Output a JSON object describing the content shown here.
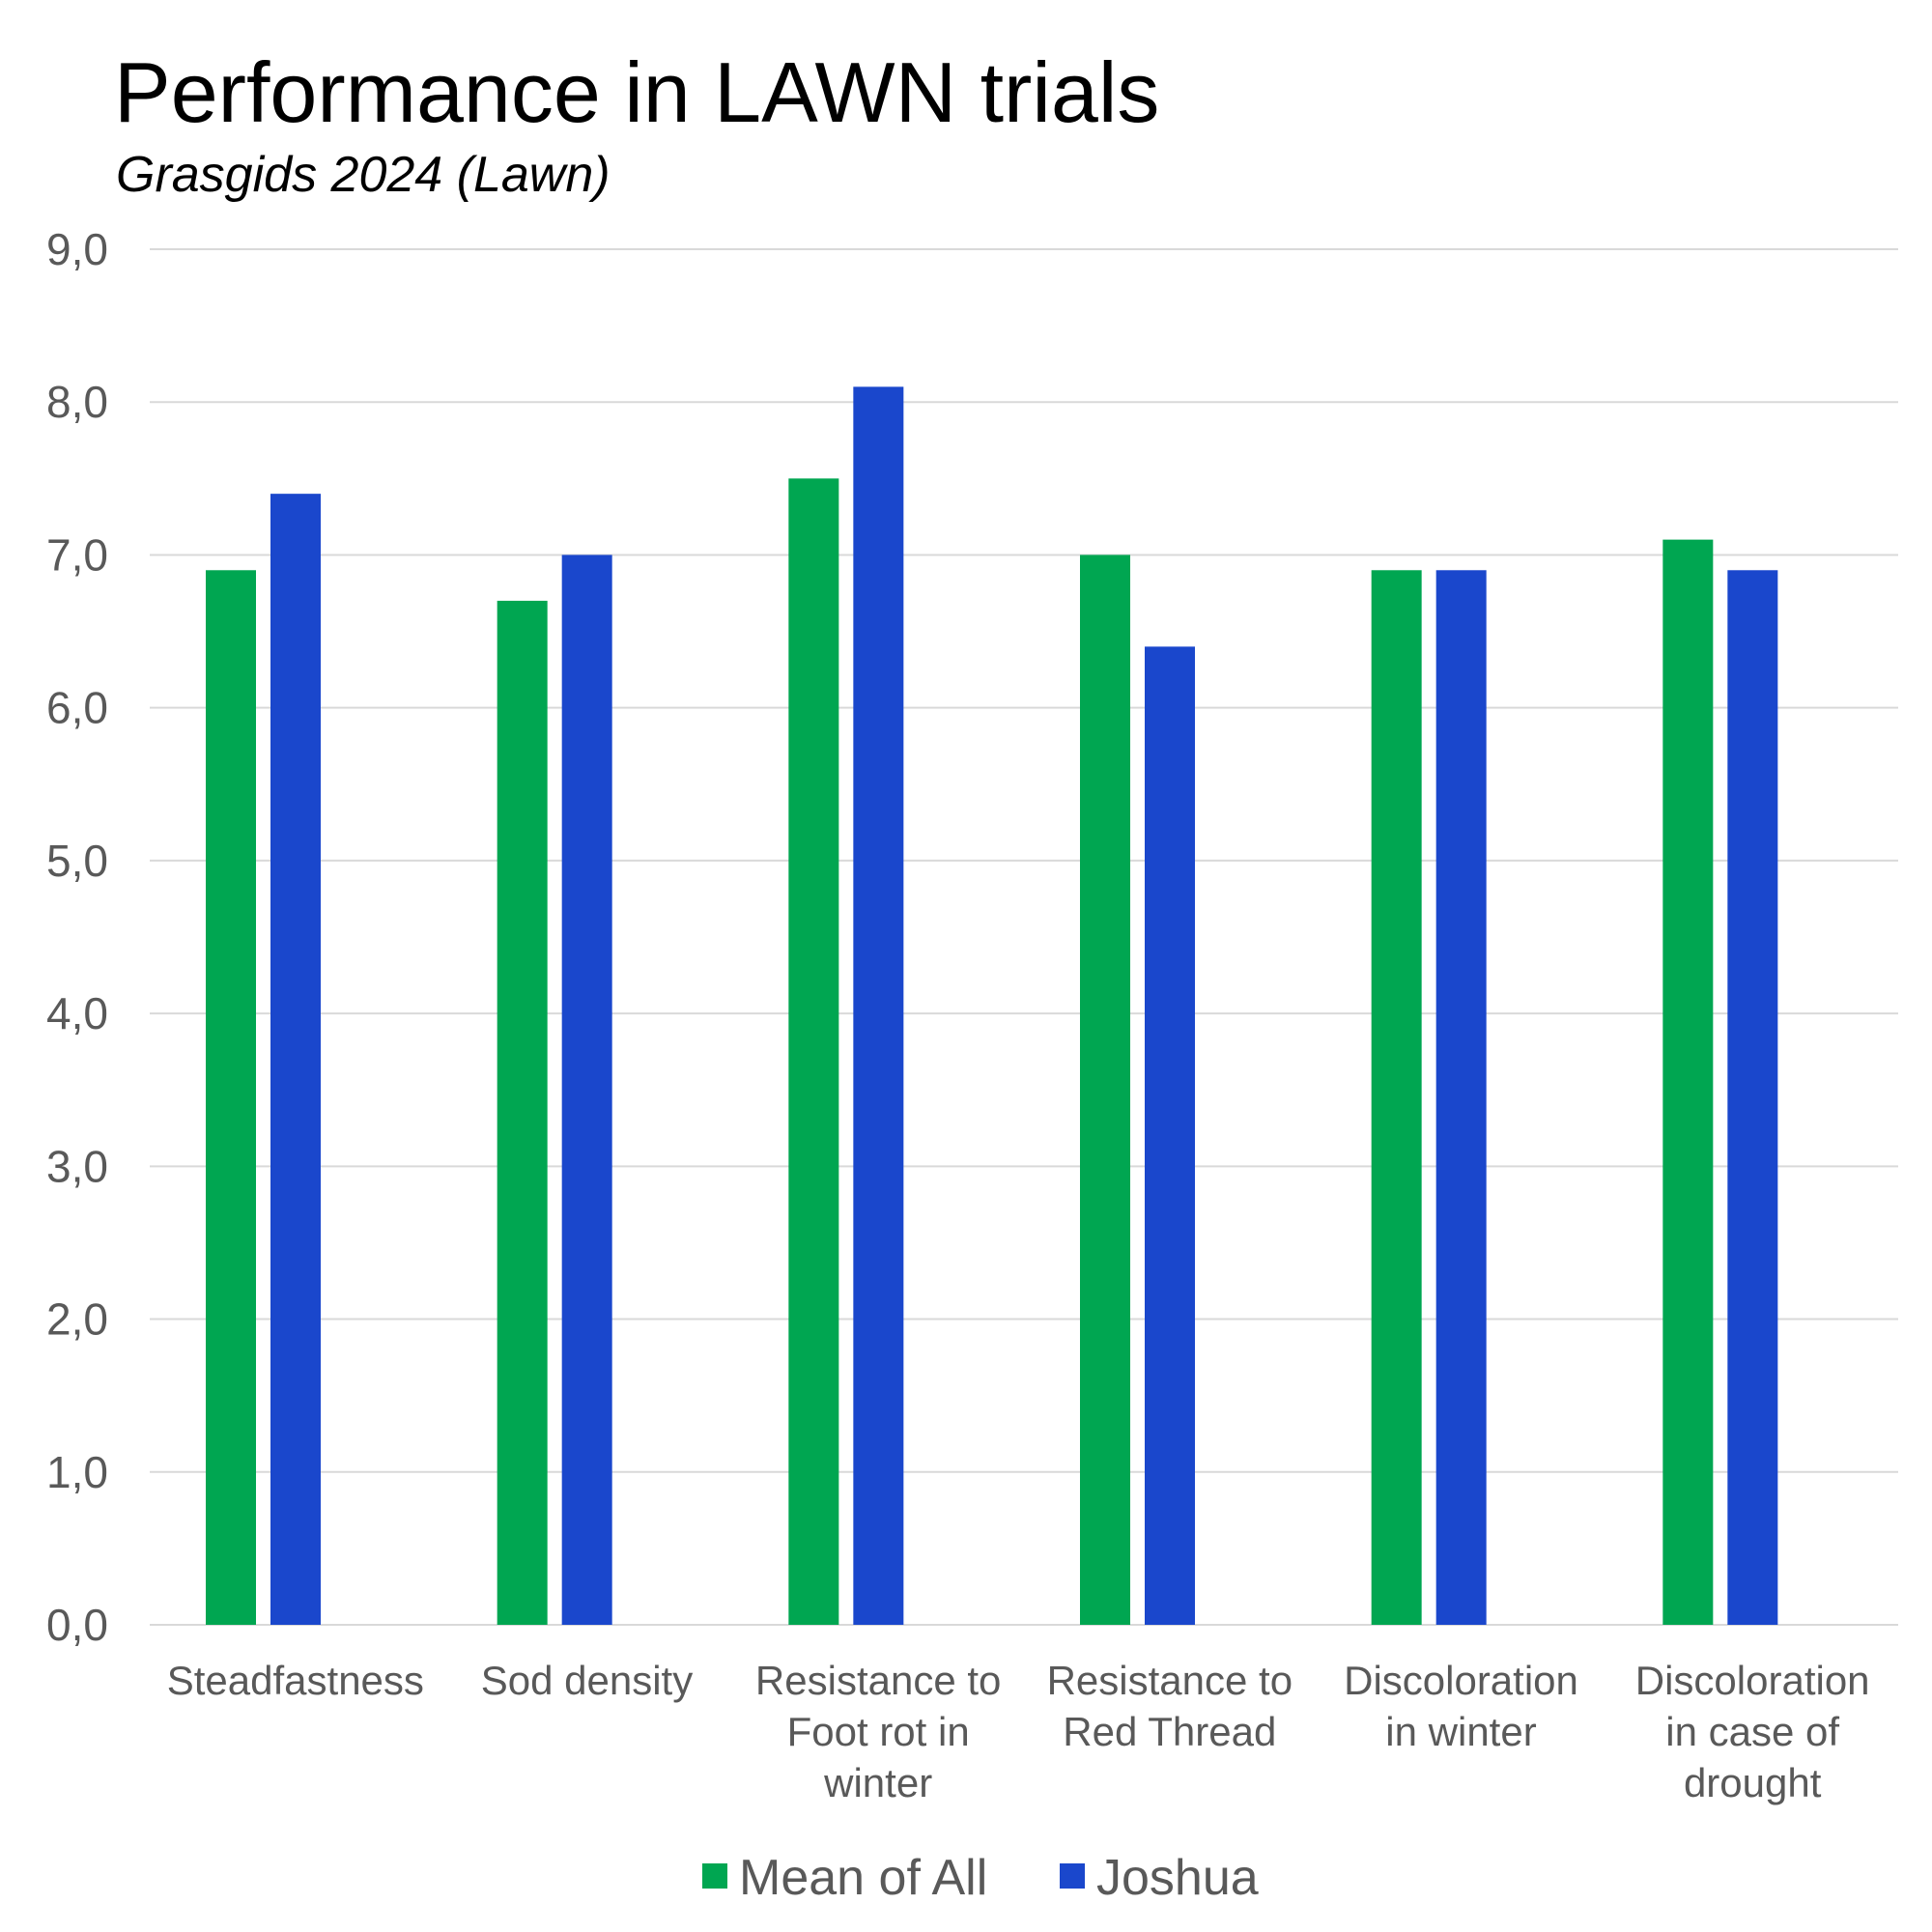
{
  "header": {
    "title": "Performance in LAWN trials",
    "subtitle": "Grasgids 2024 (Lawn)"
  },
  "colors": {
    "series_1": "#00A651",
    "series_2": "#1A47CC",
    "grid": "#D9D9D9",
    "axis_text": "#595959"
  },
  "chart_data": {
    "type": "bar",
    "title": "Performance in LAWN trials",
    "subtitle": "Grasgids 2024 (Lawn)",
    "categories": [
      "Steadfastness",
      "Sod density",
      "Resistance to Foot rot in winter",
      "Resistance to Red Thread",
      "Discoloration in winter",
      "Discoloration in case of drought"
    ],
    "category_lines": [
      [
        "Steadfastness"
      ],
      [
        "Sod density"
      ],
      [
        "Resistance to",
        "Foot rot in",
        "winter"
      ],
      [
        "Resistance to",
        "Red Thread"
      ],
      [
        "Discoloration",
        "in winter"
      ],
      [
        "Discoloration",
        "in case of",
        "drought"
      ]
    ],
    "series": [
      {
        "name": "Mean of All",
        "values": [
          6.9,
          6.7,
          7.5,
          7.0,
          6.9,
          7.1
        ]
      },
      {
        "name": "Joshua",
        "values": [
          7.4,
          7.0,
          8.1,
          6.4,
          6.9,
          6.9
        ]
      }
    ],
    "ylim": [
      0,
      9
    ],
    "yticks": [
      "0,0",
      "1,0",
      "2,0",
      "3,0",
      "4,0",
      "5,0",
      "6,0",
      "7,0",
      "8,0",
      "9,0"
    ],
    "grid": true,
    "legend": "bottom",
    "xlabel": "",
    "ylabel": ""
  }
}
